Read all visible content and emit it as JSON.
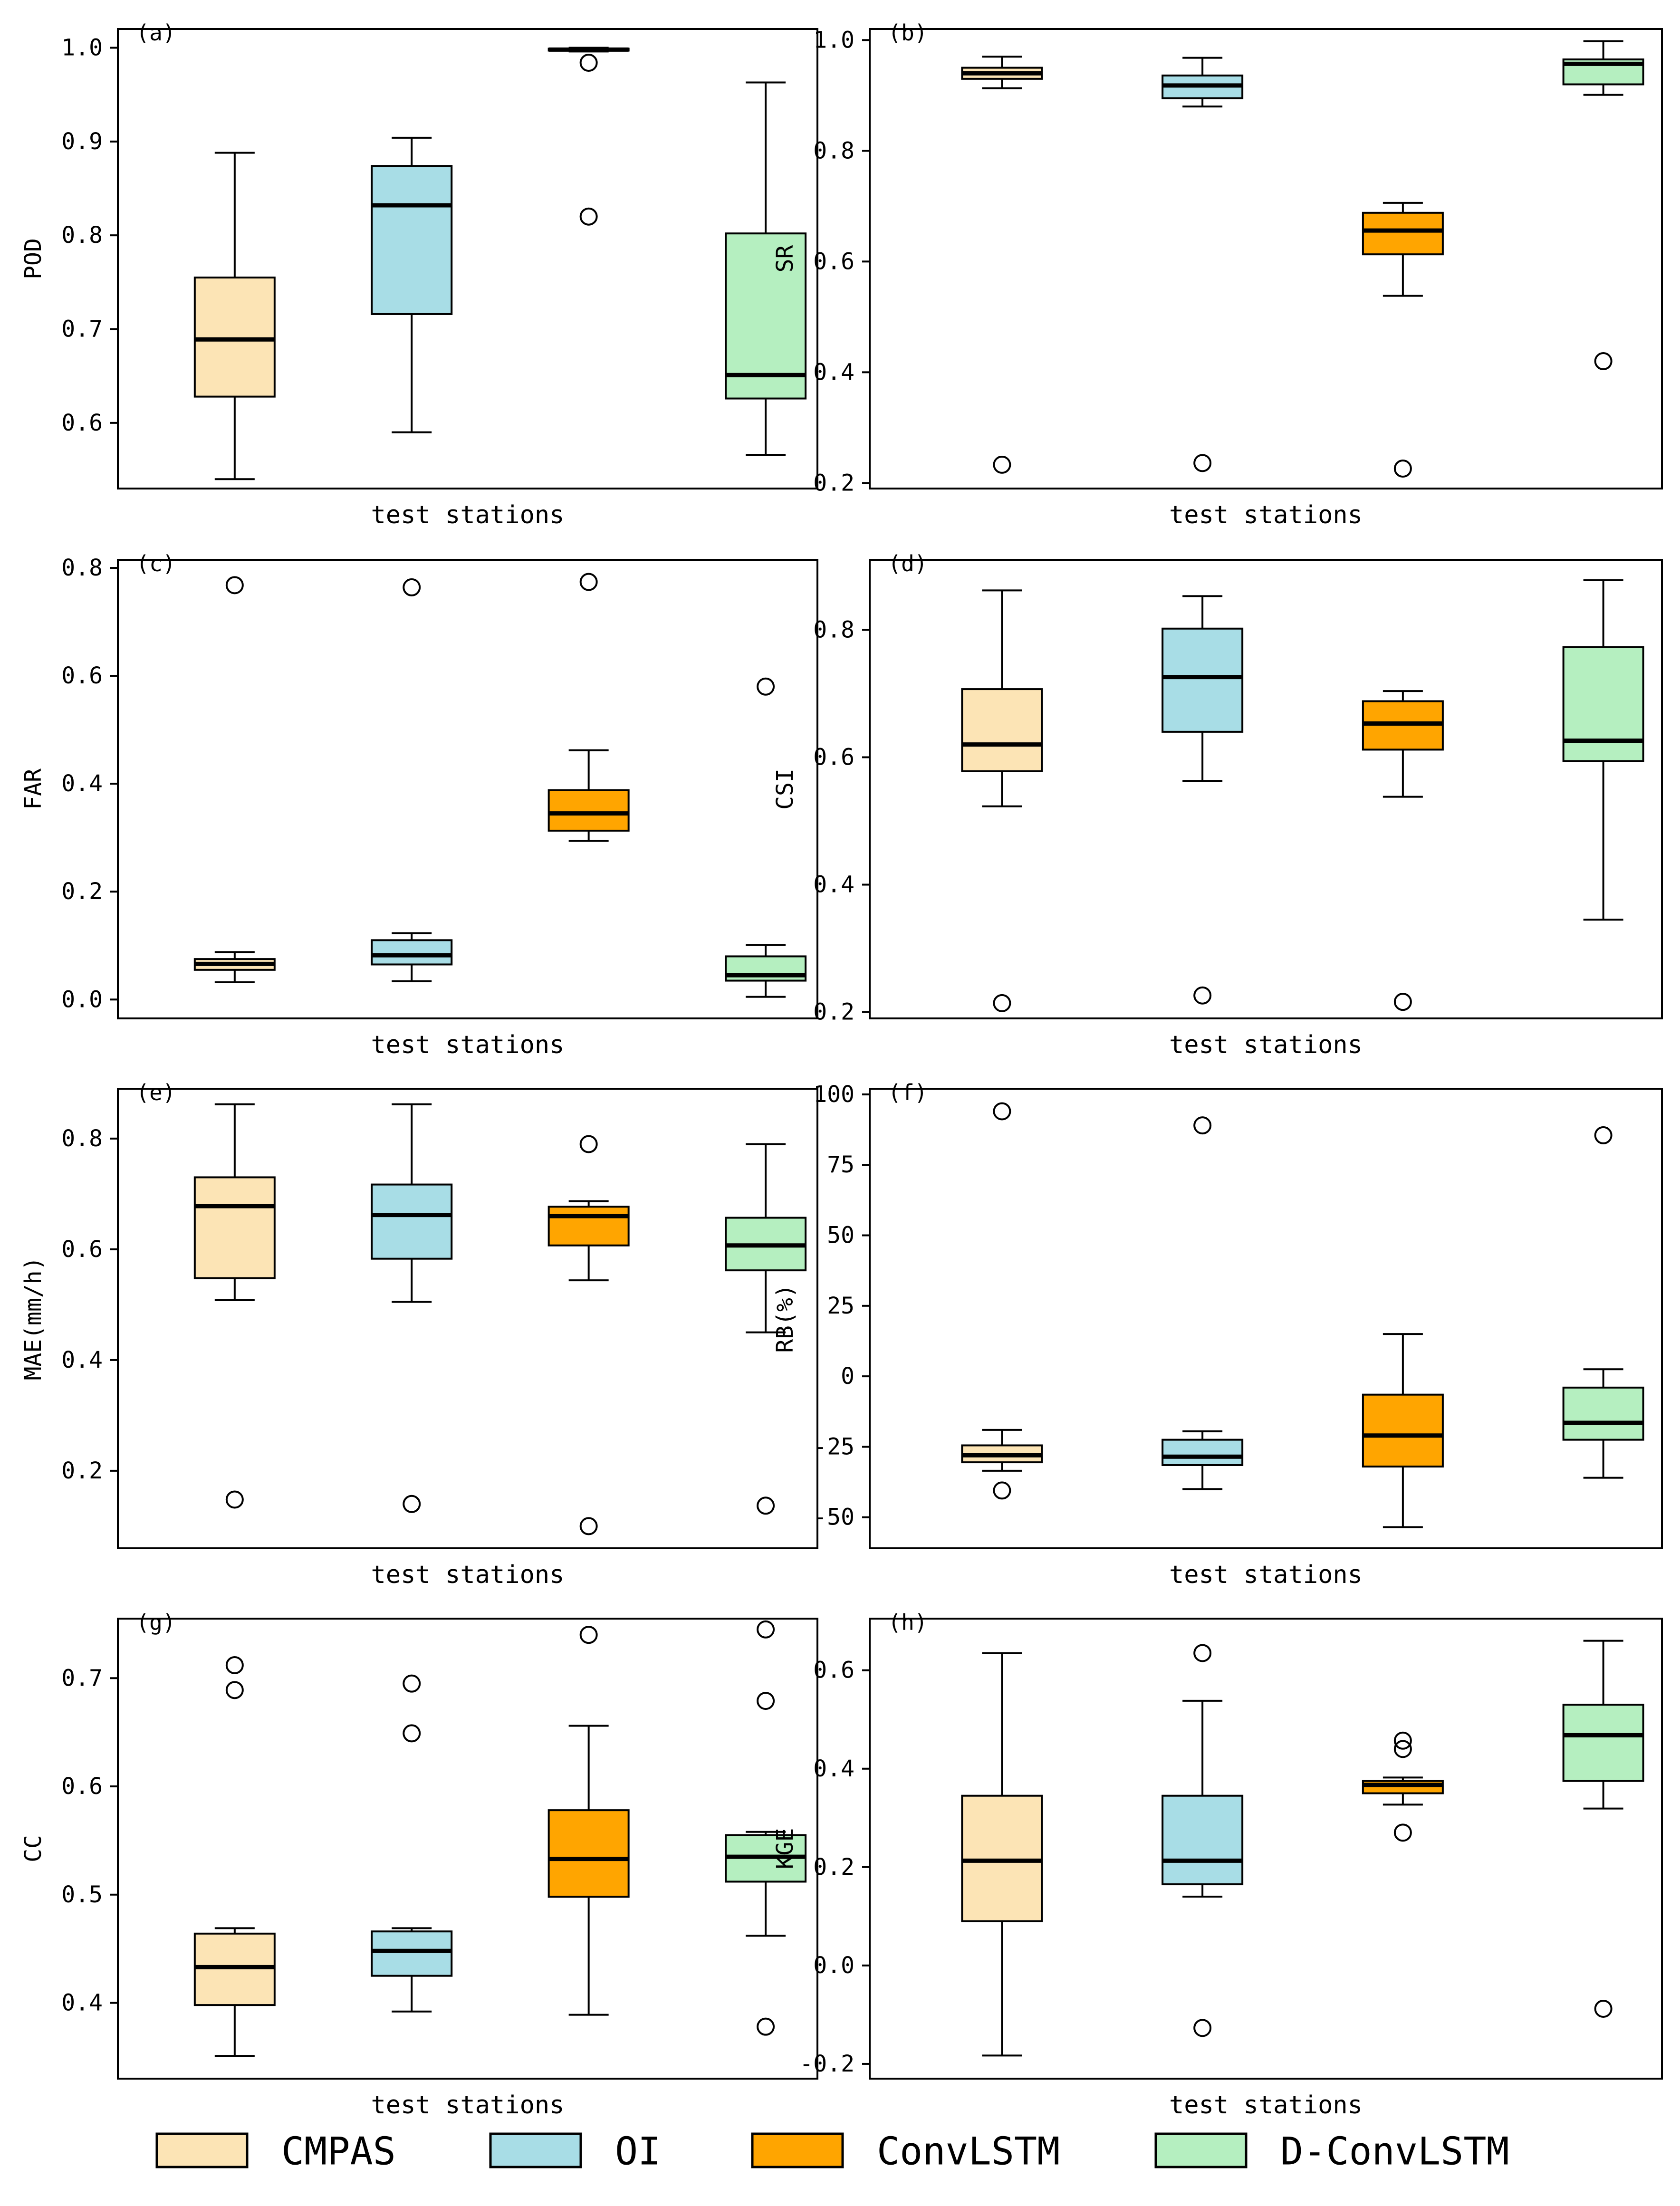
{
  "legend": {
    "items": [
      {
        "label": "CMPAS",
        "color": "#FCE4B5"
      },
      {
        "label": "OI",
        "color": "#A8DDE6"
      },
      {
        "label": "ConvLSTM",
        "color": "#FFA500"
      },
      {
        "label": "D-ConvLSTM",
        "color": "#B5EFC0"
      }
    ],
    "placement": "bottom-center"
  },
  "chart_data": [
    {
      "id": "a",
      "panel_label": "(a)",
      "type": "boxplot",
      "ylabel": "POD",
      "xlabel": "test stations",
      "ylim": [
        0.53,
        1.02
      ],
      "yticks": [
        {
          "v": 0.6,
          "t": "0.6"
        },
        {
          "v": 0.7,
          "t": "0.7"
        },
        {
          "v": 0.8,
          "t": "0.8"
        },
        {
          "v": 0.9,
          "t": "0.9"
        },
        {
          "v": 1.0,
          "t": "1.0"
        }
      ],
      "series": [
        {
          "name": "CMPAS",
          "whislo": 0.54,
          "q1": 0.628,
          "med": 0.689,
          "q3": 0.755,
          "whishi": 0.888,
          "fliers": []
        },
        {
          "name": "OI",
          "whislo": 0.59,
          "q1": 0.716,
          "med": 0.832,
          "q3": 0.874,
          "whishi": 0.904,
          "fliers": []
        },
        {
          "name": "ConvLSTM",
          "whislo": 0.996,
          "q1": 0.997,
          "med": 0.998,
          "q3": 0.999,
          "whishi": 1.0,
          "fliers": [
            0.984,
            0.82
          ]
        },
        {
          "name": "D-ConvLSTM",
          "whislo": 0.566,
          "q1": 0.626,
          "med": 0.651,
          "q3": 0.802,
          "whishi": 0.963,
          "fliers": []
        }
      ]
    },
    {
      "id": "b",
      "panel_label": "(b)",
      "type": "boxplot",
      "ylabel": "SR",
      "xlabel": "test stations",
      "ylim": [
        0.19,
        1.02
      ],
      "yticks": [
        {
          "v": 0.2,
          "t": "0.2"
        },
        {
          "v": 0.4,
          "t": "0.4"
        },
        {
          "v": 0.6,
          "t": "0.6"
        },
        {
          "v": 0.8,
          "t": "0.8"
        },
        {
          "v": 1.0,
          "t": "1.0"
        }
      ],
      "series": [
        {
          "name": "CMPAS",
          "whislo": 0.913,
          "q1": 0.93,
          "med": 0.94,
          "q3": 0.95,
          "whishi": 0.97,
          "fliers": [
            0.233
          ]
        },
        {
          "name": "OI",
          "whislo": 0.88,
          "q1": 0.895,
          "med": 0.918,
          "q3": 0.936,
          "whishi": 0.968,
          "fliers": [
            0.236
          ]
        },
        {
          "name": "ConvLSTM",
          "whislo": 0.538,
          "q1": 0.613,
          "med": 0.656,
          "q3": 0.688,
          "whishi": 0.706,
          "fliers": [
            0.226
          ]
        },
        {
          "name": "D-ConvLSTM",
          "whislo": 0.901,
          "q1": 0.92,
          "med": 0.957,
          "q3": 0.965,
          "whishi": 0.998,
          "fliers": [
            0.42
          ]
        }
      ]
    },
    {
      "id": "c",
      "panel_label": "(c)",
      "type": "boxplot",
      "ylabel": "FAR",
      "xlabel": "test stations",
      "ylim": [
        -0.035,
        0.815
      ],
      "yticks": [
        {
          "v": 0.0,
          "t": "0.0"
        },
        {
          "v": 0.2,
          "t": "0.2"
        },
        {
          "v": 0.4,
          "t": "0.4"
        },
        {
          "v": 0.6,
          "t": "0.6"
        },
        {
          "v": 0.8,
          "t": "0.8"
        }
      ],
      "series": [
        {
          "name": "CMPAS",
          "whislo": 0.032,
          "q1": 0.055,
          "med": 0.066,
          "q3": 0.075,
          "whishi": 0.088,
          "fliers": [
            0.768
          ]
        },
        {
          "name": "OI",
          "whislo": 0.034,
          "q1": 0.065,
          "med": 0.082,
          "q3": 0.11,
          "whishi": 0.123,
          "fliers": [
            0.764
          ]
        },
        {
          "name": "ConvLSTM",
          "whislo": 0.294,
          "q1": 0.313,
          "med": 0.345,
          "q3": 0.388,
          "whishi": 0.462,
          "fliers": [
            0.774
          ]
        },
        {
          "name": "D-ConvLSTM",
          "whislo": 0.005,
          "q1": 0.035,
          "med": 0.045,
          "q3": 0.08,
          "whishi": 0.101,
          "fliers": [
            0.58
          ]
        }
      ]
    },
    {
      "id": "d",
      "panel_label": "(d)",
      "type": "boxplot",
      "ylabel": "CSI",
      "xlabel": "test stations",
      "ylim": [
        0.19,
        0.91
      ],
      "yticks": [
        {
          "v": 0.2,
          "t": "0.2"
        },
        {
          "v": 0.4,
          "t": "0.4"
        },
        {
          "v": 0.6,
          "t": "0.6"
        },
        {
          "v": 0.8,
          "t": "0.8"
        }
      ],
      "series": [
        {
          "name": "CMPAS",
          "whislo": 0.523,
          "q1": 0.578,
          "med": 0.62,
          "q3": 0.707,
          "whishi": 0.862,
          "fliers": [
            0.214
          ]
        },
        {
          "name": "OI",
          "whislo": 0.563,
          "q1": 0.64,
          "med": 0.726,
          "q3": 0.802,
          "whishi": 0.853,
          "fliers": [
            0.226
          ]
        },
        {
          "name": "ConvLSTM",
          "whislo": 0.538,
          "q1": 0.612,
          "med": 0.653,
          "q3": 0.688,
          "whishi": 0.704,
          "fliers": [
            0.216
          ]
        },
        {
          "name": "D-ConvLSTM",
          "whislo": 0.345,
          "q1": 0.594,
          "med": 0.626,
          "q3": 0.773,
          "whishi": 0.878,
          "fliers": []
        }
      ]
    },
    {
      "id": "e",
      "panel_label": "(e)",
      "type": "boxplot",
      "ylabel": "MAE(mm/h)",
      "xlabel": "test stations",
      "ylim": [
        0.06,
        0.89
      ],
      "yticks": [
        {
          "v": 0.2,
          "t": "0.2"
        },
        {
          "v": 0.4,
          "t": "0.4"
        },
        {
          "v": 0.6,
          "t": "0.6"
        },
        {
          "v": 0.8,
          "t": "0.8"
        }
      ],
      "series": [
        {
          "name": "CMPAS",
          "whislo": 0.508,
          "q1": 0.548,
          "med": 0.678,
          "q3": 0.73,
          "whishi": 0.862,
          "fliers": [
            0.148
          ]
        },
        {
          "name": "OI",
          "whislo": 0.505,
          "q1": 0.583,
          "med": 0.662,
          "q3": 0.717,
          "whishi": 0.862,
          "fliers": [
            0.14
          ]
        },
        {
          "name": "ConvLSTM",
          "whislo": 0.544,
          "q1": 0.607,
          "med": 0.66,
          "q3": 0.677,
          "whishi": 0.687,
          "fliers": [
            0.79,
            0.1
          ]
        },
        {
          "name": "D-ConvLSTM",
          "whislo": 0.45,
          "q1": 0.562,
          "med": 0.607,
          "q3": 0.657,
          "whishi": 0.79,
          "fliers": [
            0.137
          ]
        }
      ]
    },
    {
      "id": "f",
      "panel_label": "(f)",
      "type": "boxplot",
      "ylabel": "RB(%)",
      "xlabel": "test stations",
      "ylim": [
        -61,
        102
      ],
      "yticks": [
        {
          "v": -50,
          "t": "-50"
        },
        {
          "v": -25,
          "t": "-25"
        },
        {
          "v": 0,
          "t": "0"
        },
        {
          "v": 25,
          "t": "25"
        },
        {
          "v": 50,
          "t": "50"
        },
        {
          "v": 75,
          "t": "75"
        },
        {
          "v": 100,
          "t": "100"
        }
      ],
      "series": [
        {
          "name": "CMPAS",
          "whislo": -33.5,
          "q1": -30.5,
          "med": -28,
          "q3": -24.5,
          "whishi": -19,
          "fliers": [
            -40.5,
            94
          ]
        },
        {
          "name": "OI",
          "whislo": -40,
          "q1": -31.5,
          "med": -28.5,
          "q3": -22.5,
          "whishi": -19.5,
          "fliers": [
            89
          ]
        },
        {
          "name": "ConvLSTM",
          "whislo": -53.5,
          "q1": -32,
          "med": -21,
          "q3": -6.5,
          "whishi": 15,
          "fliers": []
        },
        {
          "name": "D-ConvLSTM",
          "whislo": -36,
          "q1": -22.5,
          "med": -16.5,
          "q3": -4,
          "whishi": 2.5,
          "fliers": [
            85.5
          ]
        }
      ]
    },
    {
      "id": "g",
      "panel_label": "(g)",
      "type": "boxplot",
      "ylabel": "CC",
      "xlabel": "test stations",
      "ylim": [
        0.33,
        0.755
      ],
      "yticks": [
        {
          "v": 0.4,
          "t": "0.4"
        },
        {
          "v": 0.5,
          "t": "0.5"
        },
        {
          "v": 0.6,
          "t": "0.6"
        },
        {
          "v": 0.7,
          "t": "0.7"
        }
      ],
      "series": [
        {
          "name": "CMPAS",
          "whislo": 0.351,
          "q1": 0.398,
          "med": 0.433,
          "q3": 0.464,
          "whishi": 0.469,
          "fliers": [
            0.712,
            0.689
          ]
        },
        {
          "name": "OI",
          "whislo": 0.392,
          "q1": 0.425,
          "med": 0.448,
          "q3": 0.466,
          "whishi": 0.469,
          "fliers": [
            0.695,
            0.649
          ]
        },
        {
          "name": "ConvLSTM",
          "whislo": 0.389,
          "q1": 0.498,
          "med": 0.533,
          "q3": 0.578,
          "whishi": 0.656,
          "fliers": [
            0.74
          ]
        },
        {
          "name": "D-ConvLSTM",
          "whislo": 0.462,
          "q1": 0.512,
          "med": 0.535,
          "q3": 0.555,
          "whishi": 0.558,
          "fliers": [
            0.745,
            0.679,
            0.378
          ]
        }
      ]
    },
    {
      "id": "h",
      "panel_label": "(h)",
      "type": "boxplot",
      "ylabel": "KGE",
      "xlabel": "test stations",
      "ylim": [
        -0.23,
        0.705
      ],
      "yticks": [
        {
          "v": -0.2,
          "t": "-0.2"
        },
        {
          "v": 0.0,
          "t": "0.0"
        },
        {
          "v": 0.2,
          "t": "0.2"
        },
        {
          "v": 0.4,
          "t": "0.4"
        },
        {
          "v": 0.6,
          "t": "0.6"
        }
      ],
      "series": [
        {
          "name": "CMPAS",
          "whislo": -0.183,
          "q1": 0.09,
          "med": 0.213,
          "q3": 0.345,
          "whishi": 0.635,
          "fliers": []
        },
        {
          "name": "OI",
          "whislo": 0.14,
          "q1": 0.165,
          "med": 0.213,
          "q3": 0.345,
          "whishi": 0.538,
          "fliers": [
            0.635,
            -0.127
          ]
        },
        {
          "name": "ConvLSTM",
          "whislo": 0.327,
          "q1": 0.35,
          "med": 0.367,
          "q3": 0.375,
          "whishi": 0.382,
          "fliers": [
            0.457,
            0.44,
            0.27
          ]
        },
        {
          "name": "D-ConvLSTM",
          "whislo": 0.319,
          "q1": 0.375,
          "med": 0.468,
          "q3": 0.53,
          "whishi": 0.66,
          "fliers": [
            -0.088
          ]
        }
      ]
    }
  ]
}
